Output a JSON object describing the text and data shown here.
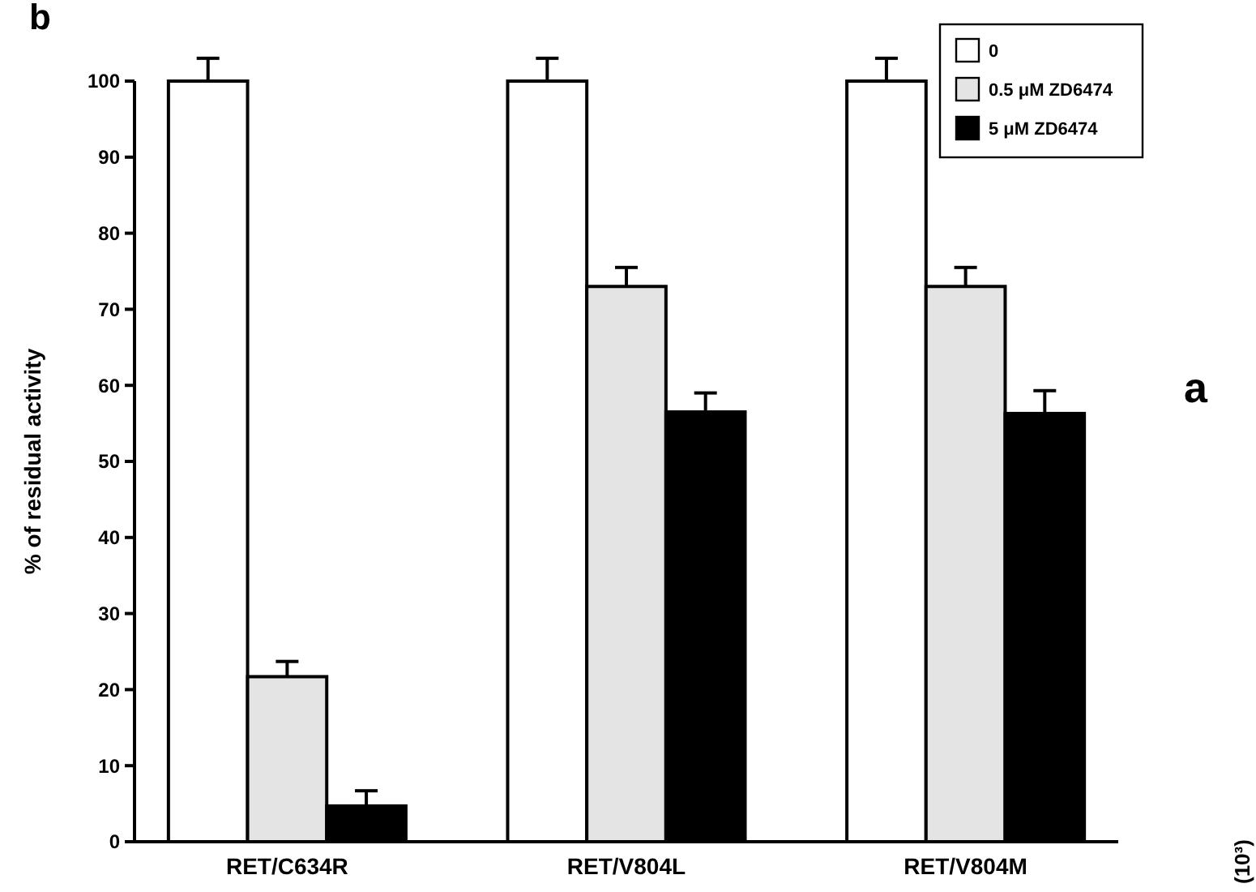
{
  "chart_data": {
    "type": "bar",
    "ylabel": "% of residual activity",
    "categories": [
      "RET/C634R",
      "RET/V804L",
      "RET/V804M"
    ],
    "series": [
      {
        "name": "0",
        "color": "#ffffff",
        "values": [
          100,
          100,
          100
        ],
        "errors": [
          3,
          3,
          3
        ]
      },
      {
        "name": "0.5 μM ZD6474",
        "color": "#e4e4e4",
        "values": [
          21.7,
          73,
          73
        ],
        "errors": [
          2,
          2.5,
          2.5
        ]
      },
      {
        "name": "5 μM ZD6474",
        "color": "#000000",
        "values": [
          4.7,
          56.5,
          56.3
        ],
        "errors": [
          2,
          2.5,
          3
        ]
      }
    ],
    "ylim": [
      0,
      100
    ],
    "yticks": [
      0,
      10,
      20,
      30,
      40,
      50,
      60,
      70,
      80,
      90,
      100
    ],
    "grid": false,
    "legend": "top right",
    "annotations": [
      "b",
      "a",
      "(10³)"
    ]
  }
}
